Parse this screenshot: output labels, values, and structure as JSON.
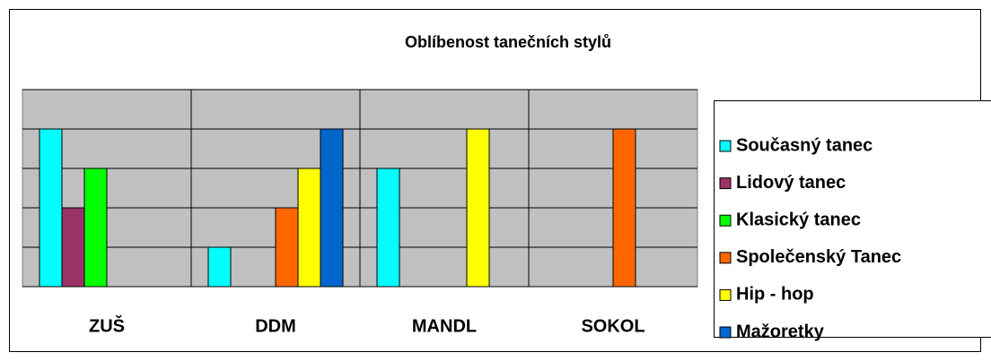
{
  "chart_data": {
    "type": "bar",
    "title": "Oblíbenost tanečních stylů",
    "categories": [
      "ZUŠ",
      "DDM",
      "MANDL",
      "SOKOL"
    ],
    "series": [
      {
        "name": "Současný tanec",
        "color": "#00ffff",
        "values": [
          4,
          1,
          3,
          null
        ]
      },
      {
        "name": "Lidový tanec",
        "color": "#993366",
        "values": [
          2,
          null,
          null,
          null
        ]
      },
      {
        "name": "Klasický tanec",
        "color": "#00ff00",
        "values": [
          3,
          null,
          null,
          null
        ]
      },
      {
        "name": "Společenský Tanec",
        "color": "#ff6600",
        "values": [
          null,
          2,
          null,
          4
        ]
      },
      {
        "name": "Hip - hop",
        "color": "#ffff00",
        "values": [
          null,
          3,
          4,
          null
        ]
      },
      {
        "name": "Mažoretky",
        "color": "#0066cc",
        "values": [
          null,
          4,
          null,
          null
        ]
      }
    ],
    "ylim": [
      0,
      5
    ],
    "yticks": [
      0,
      1,
      2,
      3,
      4,
      5
    ],
    "grid": true,
    "legend": "right"
  }
}
